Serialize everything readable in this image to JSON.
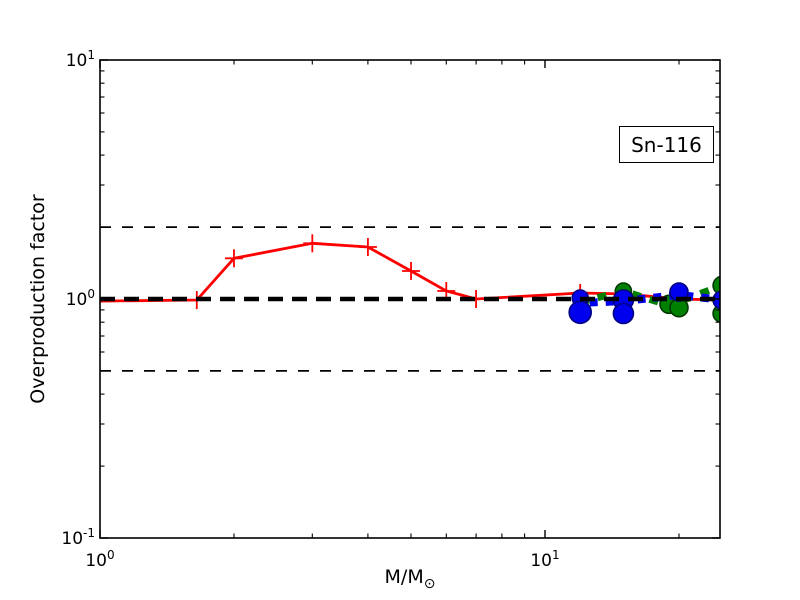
{
  "figure": {
    "ylabel": "Overproduction factor",
    "xlabel_main": "M/M",
    "xlabel_subscript": "⊙",
    "annotation_box": {
      "label": "Sn-116"
    }
  },
  "chart_data": {
    "type": "line",
    "title": "",
    "xlabel": "M/M☉",
    "ylabel": "Overproduction factor",
    "annotation": "Sn-116",
    "xscale": "log",
    "yscale": "log",
    "xlim": [
      1,
      24.7
    ],
    "ylim": [
      0.1,
      10
    ],
    "grid": false,
    "legend": "none",
    "x_major_ticks": [
      1,
      10
    ],
    "x_minor_ticks": [
      2,
      3,
      4,
      5,
      6,
      7,
      8,
      9,
      20
    ],
    "x_tick_labels": [
      "10^0",
      "10^1"
    ],
    "y_major_ticks": [
      10,
      1,
      0.1
    ],
    "y_minor_ticks": [
      0.2,
      0.3,
      0.4,
      0.5,
      0.6,
      0.7,
      0.8,
      0.9,
      2,
      3,
      4,
      5,
      6,
      7,
      8,
      9
    ],
    "y_tick_labels": [
      "10^1",
      "10^0",
      "10^-1"
    ],
    "reference_lines": [
      {
        "y": 2.0,
        "color": "#000000",
        "style": "dashed-thin"
      },
      {
        "y": 0.5,
        "color": "#000000",
        "style": "dashed-thin"
      },
      {
        "y": 1.0,
        "color": "#000000",
        "style": "dashed-thick"
      }
    ],
    "series": [
      {
        "name": "low-mass-models-red",
        "color": "#ff0000",
        "linestyle": "solid",
        "line_width": 2.8,
        "marker": "plus",
        "marker_size": 9,
        "x": [
          1.0,
          1.65,
          2.0,
          3.0,
          4.0,
          5.0,
          6.0,
          7.0,
          12.0,
          15.0,
          20.0,
          25.0
        ],
        "y": [
          0.98,
          0.99,
          1.48,
          1.71,
          1.65,
          1.31,
          1.08,
          1.0,
          1.06,
          1.05,
          1.0,
          0.99
        ],
        "marker_from_index": 1
      },
      {
        "name": "massive-models-green",
        "color": "#008000",
        "edge_color": "#003800",
        "linestyle": "dashed",
        "line_width": 7,
        "dash": "9 9",
        "marker": "circle",
        "line_x": [
          12.0,
          15.0,
          19.0,
          25.0
        ],
        "line_y": [
          0.97,
          1.08,
          0.94,
          1.14
        ],
        "points": [
          [
            15.0,
            1.08,
            8
          ],
          [
            19.0,
            0.95,
            9
          ],
          [
            20.0,
            0.92,
            9
          ],
          [
            25.0,
            1.14,
            9
          ],
          [
            25.0,
            0.87,
            9
          ]
        ]
      },
      {
        "name": "massive-models-blue",
        "color": "#0000ee",
        "edge_color": "#000080",
        "linestyle": "dashed",
        "line_width": 8,
        "dash": "8 8",
        "marker": "circle",
        "line_x": [
          11.6,
          15.0,
          20.0,
          25.0
        ],
        "line_y": [
          0.96,
          0.98,
          1.04,
          0.99
        ],
        "points": [
          [
            12.0,
            1.01,
            8
          ],
          [
            12.0,
            0.88,
            11
          ],
          [
            15.0,
            0.99,
            10
          ],
          [
            15.0,
            0.87,
            10
          ],
          [
            20.0,
            1.07,
            9
          ],
          [
            25.0,
            0.99,
            9
          ]
        ]
      }
    ]
  }
}
